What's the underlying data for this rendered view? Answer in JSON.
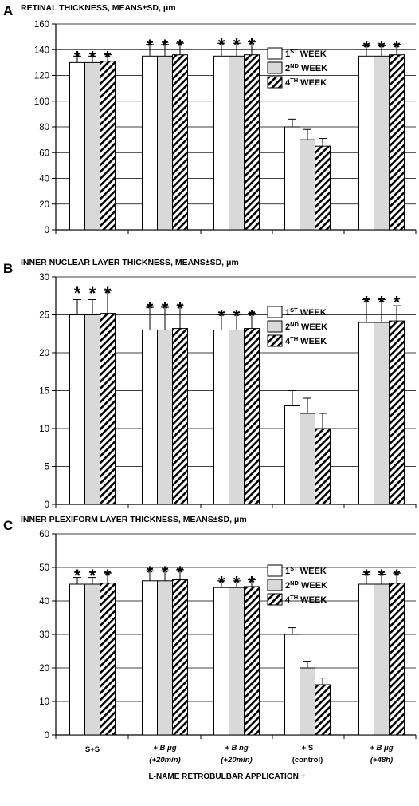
{
  "figure": {
    "xlabel": "L-NAME RETROBULBAR APPLICATION +",
    "category_lines": [
      [
        "S+S"
      ],
      [
        "+ B μg",
        "(+20min)"
      ],
      [
        "+ B ng",
        "(+20min)"
      ],
      [
        "+ S",
        "(control)"
      ],
      [
        "+ B μg",
        "(+48h)"
      ]
    ],
    "legend": [
      {
        "base": "1",
        "sup": "ST",
        "rest": " WEEK",
        "fill": "white"
      },
      {
        "base": "2",
        "sup": "ND",
        "rest": " WEEK",
        "fill": "light-gray"
      },
      {
        "base": "4",
        "sup": "TH",
        "rest": " WEEK",
        "fill": "diagonal-hatch"
      }
    ],
    "significance_marker": "*",
    "colors": {
      "bar_outline": "#000000",
      "week2_fill": "#d9d9d9",
      "gridline": "#000000",
      "background": "#ffffff"
    }
  },
  "chart_data": [
    {
      "type": "bar",
      "panel": "A",
      "title": "RETINAL THICKNESS, MEANS±SD, μm",
      "categories": [
        "S+S",
        "+ B μg (+20min)",
        "+ B ng (+20min)",
        "+ S (control)",
        "+ B μg (+48h)"
      ],
      "series": [
        {
          "name": "1ST WEEK",
          "values": [
            130,
            135,
            135,
            80,
            135
          ],
          "sd": [
            5,
            9,
            10,
            6,
            8
          ]
        },
        {
          "name": "2ND WEEK",
          "values": [
            130,
            135,
            135,
            70,
            135
          ],
          "sd": [
            5,
            9,
            10,
            8,
            8
          ]
        },
        {
          "name": "4TH WEEK",
          "values": [
            131,
            136,
            136,
            65,
            136
          ],
          "sd": [
            5,
            9,
            10,
            6,
            8
          ]
        }
      ],
      "significant": [
        true,
        true,
        true,
        false,
        true
      ],
      "ylim": [
        0,
        160
      ],
      "yticks": [
        0,
        20,
        40,
        60,
        80,
        100,
        120,
        140,
        160
      ],
      "grid": "horizontal",
      "legend_position": "upper-right"
    },
    {
      "type": "bar",
      "panel": "B",
      "title": "INNER NUCLEAR LAYER THICKNESS, MEANS±SD, μm",
      "categories": [
        "S+S",
        "+ B μg (+20min)",
        "+ B ng (+20min)",
        "+ S (control)",
        "+ B μg (+48h)"
      ],
      "series": [
        {
          "name": "1ST WEEK",
          "values": [
            25,
            23,
            23,
            13,
            24
          ],
          "sd": [
            2,
            3,
            2,
            2,
            3
          ]
        },
        {
          "name": "2ND WEEK",
          "values": [
            25,
            23,
            23,
            12,
            24
          ],
          "sd": [
            2,
            3,
            2,
            2,
            3
          ]
        },
        {
          "name": "4TH WEEK",
          "values": [
            25.2,
            23.2,
            23.2,
            10,
            24.2
          ],
          "sd": [
            3,
            3,
            2,
            2,
            2
          ]
        }
      ],
      "significant": [
        true,
        true,
        true,
        false,
        true
      ],
      "ylim": [
        0,
        30
      ],
      "yticks": [
        0,
        5,
        10,
        15,
        20,
        25,
        30
      ],
      "grid": "horizontal",
      "legend_position": "upper-right"
    },
    {
      "type": "bar",
      "panel": "C",
      "title": "INNER PLEXIFORM LAYER THICKNESS, MEANS±SD, μm",
      "categories": [
        "S+S",
        "+ B μg (+20min)",
        "+ B ng (+20min)",
        "+ S (control)",
        "+ B μg (+48h)"
      ],
      "series": [
        {
          "name": "1ST WEEK",
          "values": [
            45,
            46,
            44,
            30,
            45
          ],
          "sd": [
            2,
            3,
            2,
            2,
            3
          ]
        },
        {
          "name": "2ND WEEK",
          "values": [
            45,
            46,
            44,
            20,
            45
          ],
          "sd": [
            2,
            3,
            2,
            2,
            3
          ]
        },
        {
          "name": "4TH WEEK",
          "values": [
            45.3,
            46.3,
            44.3,
            15,
            45.3
          ],
          "sd": [
            3,
            3,
            2,
            2,
            3
          ]
        }
      ],
      "significant": [
        true,
        true,
        true,
        false,
        true
      ],
      "ylim": [
        0,
        60
      ],
      "yticks": [
        0,
        10,
        20,
        30,
        40,
        50,
        60
      ],
      "grid": "horizontal",
      "legend_position": "upper-right"
    }
  ]
}
